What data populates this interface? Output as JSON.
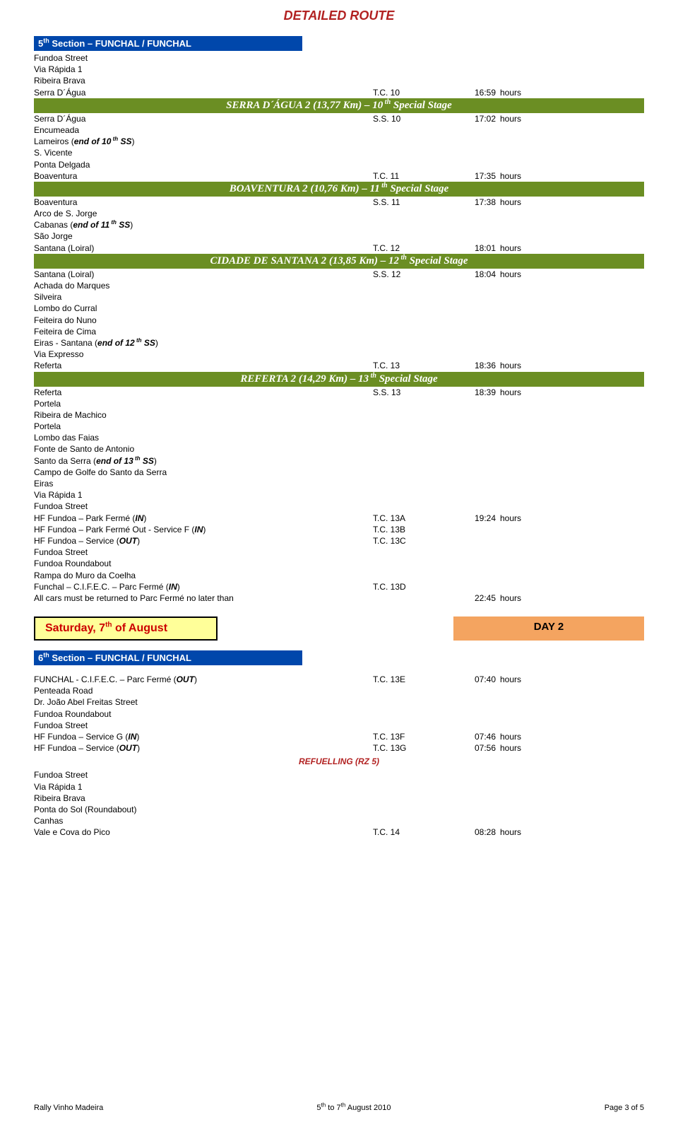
{
  "header": {
    "title": "DETAILED ROUTE"
  },
  "section5": {
    "title_html": "5<sup>th</sup> Section – FUNCHAL / FUNCHAL",
    "pre_stage10": [
      {
        "c1": "Fundoa Street"
      },
      {
        "c1": "Via Rápida 1"
      },
      {
        "c1": "Ribeira Brava"
      },
      {
        "c1": "Serra D´Água",
        "c2": "T.C. 10",
        "c3": "16:59",
        "c4": "hours"
      }
    ],
    "stage10_html": "SERRA D´ÁGUA 2 (13,77 Km) – 10<sup> th</sup> Special Stage",
    "after_stage10": [
      {
        "c1": "Serra D´Água",
        "c2": "S.S. 10",
        "c3": "17:02",
        "c4": "hours"
      },
      {
        "c1": "Encumeada"
      },
      {
        "c1_html": "Lameiros (<b><i>end of 10<sup> th</sup> SS</i></b>)"
      },
      {
        "c1": "S. Vicente"
      },
      {
        "c1": "Ponta Delgada"
      },
      {
        "c1": "Boaventura",
        "c2": "T.C. 11",
        "c3": "17:35",
        "c4": "hours"
      }
    ],
    "stage11_html": "BOAVENTURA 2  (10,76 Km) – 11<sup> th</sup> Special Stage",
    "after_stage11": [
      {
        "c1": "Boaventura",
        "c2": "S.S. 11",
        "c3": "17:38",
        "c4": "hours"
      },
      {
        "c1": "Arco de S. Jorge"
      },
      {
        "c1_html": "Cabanas (<b><i>end of 11<sup> th</sup> SS</i></b>)"
      },
      {
        "c1": "São Jorge"
      },
      {
        "c1": "Santana (Loiral)",
        "c2": "T.C. 12",
        "c3": "18:01",
        "c4": "hours"
      }
    ],
    "stage12_html": "CIDADE DE SANTANA 2 (13,85 Km) – 12<sup> th</sup> Special Stage",
    "after_stage12": [
      {
        "c1": "Santana (Loiral)",
        "c2": "S.S. 12",
        "c3": "18:04",
        "c4": "hours"
      },
      {
        "c1": "Achada do Marques"
      },
      {
        "c1": "Silveira"
      },
      {
        "c1": "Lombo do Curral"
      },
      {
        "c1": "Feiteira do Nuno"
      },
      {
        "c1": "Feiteira de Cima"
      },
      {
        "c1_html": "Eiras - Santana (<b><i>end of 12<sup> th</sup> SS</i></b>)"
      },
      {
        "c1": "Via Expresso"
      },
      {
        "c1": "Referta",
        "c2": "T.C. 13",
        "c3": "18:36",
        "c4": "hours"
      }
    ],
    "stage13_html": "REFERTA 2 (14,29 Km) – 13<sup> th</sup> Special Stage",
    "after_stage13": [
      {
        "c1": "Referta",
        "c2": "S.S. 13",
        "c3": "18:39",
        "c4": "hours"
      },
      {
        "c1": "Portela"
      },
      {
        "c1": "Ribeira de Machico"
      },
      {
        "c1": "Portela"
      },
      {
        "c1": "Lombo das Faias"
      },
      {
        "c1": "Fonte de Santo de Antonio"
      },
      {
        "c1_html": "Santo da Serra (<b><i>end of 13<sup> th</sup> SS</i></b>)"
      },
      {
        "c1": "Campo de Golfe do Santo da Serra"
      },
      {
        "c1": "Eiras"
      },
      {
        "c1": "Via Rápida 1"
      },
      {
        "c1": "Fundoa Street"
      },
      {
        "c1_html": "HF Fundoa – Park Fermé (<b><i>IN</i></b>)",
        "c2": "T.C. 13A",
        "c3": "19:24",
        "c4": "hours"
      },
      {
        "c1_html": "HF Fundoa – Park Fermé Out - Service F (<b><i>IN</i></b>)",
        "c2": "T.C. 13B"
      },
      {
        "c1_html": "HF Fundoa – Service (<b><i>OUT</i></b>)",
        "c2": "T.C. 13C"
      },
      {
        "c1": "Fundoa Street"
      },
      {
        "c1": "Fundoa Roundabout"
      },
      {
        "c1": "Rampa do Muro da Coelha"
      },
      {
        "c1_html": "Funchal – C.I.F.E.C. – Parc Fermé (<b><i>IN</i></b>)",
        "c2": "T.C. 13D"
      },
      {
        "c1": "All cars must be returned to Parc Fermé no later than",
        "c3": "22:45",
        "c4": "hours"
      }
    ]
  },
  "day2": {
    "label_html": "Saturday, 7<sup>th</sup> of August",
    "num": "DAY 2"
  },
  "section6": {
    "title_html": "6<sup>th</sup> Section – FUNCHAL / FUNCHAL",
    "rows_a": [
      {
        "c1_html": "FUNCHAL - C.I.F.E.C. – Parc Fermé (<b><i>OUT</i></b>)",
        "c2": "T.C. 13E",
        "c3": "07:40",
        "c4": "hours"
      },
      {
        "c1": "Penteada Road"
      },
      {
        "c1": "Dr. João Abel Freitas Street"
      },
      {
        "c1": "Fundoa Roundabout"
      },
      {
        "c1": "Fundoa Street"
      },
      {
        "c1_html": "HF Fundoa – Service G (<b><i>IN</i></b>)",
        "c2": "T.C.  13F",
        "c3": "07:46",
        "c4": "hours"
      },
      {
        "c1_html": "HF Fundoa – Service (<b><i>OUT</i></b>)",
        "c2": "T.C.  13G",
        "c3": "07:56",
        "c4": "hours"
      }
    ],
    "refuel": "REFUELLING (RZ 5)",
    "rows_b": [
      {
        "c1": "Fundoa Street"
      },
      {
        "c1": "Via Rápida 1"
      },
      {
        "c1": "Ribeira Brava"
      },
      {
        "c1": "Ponta do Sol (Roundabout)"
      },
      {
        "c1": "Canhas"
      },
      {
        "c1": "Vale e Cova do Pico",
        "c2": "T.C.    14",
        "c3": "08:28",
        "c4": "hours"
      }
    ]
  },
  "footer": {
    "left": "Rally Vinho Madeira",
    "mid_html": "5<sup>th</sup> to 7<sup>th</sup> August 2010",
    "right": "Page  3 of 5"
  }
}
